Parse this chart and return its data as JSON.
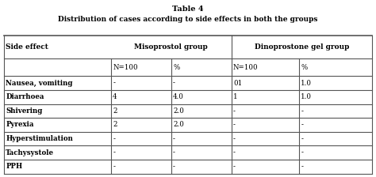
{
  "title": "Table 4",
  "subtitle": "Distribution of cases according to side effects in both the groups",
  "col_header_1": "Side effect",
  "col_header_2": "Misoprostol group",
  "col_header_3": "Dinoprostone gel group",
  "sub_header": [
    "N=100",
    "%",
    "N=100",
    "%"
  ],
  "side_effects": [
    "Nausea, vomiting",
    "Diarrhoea",
    "Shivering",
    "Pyrexia",
    "Hyperstimulation",
    "Tachysystole",
    "PPH"
  ],
  "misoprostol_n": [
    "-",
    "4",
    "2",
    "2",
    "-",
    "-",
    "-"
  ],
  "misoprostol_pct": [
    "-",
    "4.0",
    "2.0",
    "2.0",
    "-",
    "-",
    "-"
  ],
  "dinoprostone_n": [
    "01",
    "1",
    "-",
    "-",
    "-",
    "-",
    "-"
  ],
  "dinoprostone_pct": [
    "1.0",
    "1.0",
    "-",
    "-",
    "-",
    "-",
    "-"
  ],
  "bg_color": "#ffffff",
  "header_bg": "#e8e8e8",
  "text_color": "#000000",
  "line_color": "#555555",
  "bold_rows": [
    0,
    1,
    2,
    3,
    4,
    5,
    6
  ]
}
